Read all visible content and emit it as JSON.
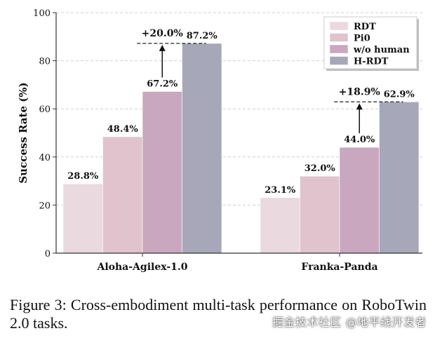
{
  "chart_data": {
    "type": "bar",
    "ylabel": "Success Rate (%)",
    "ylim": [
      0,
      100
    ],
    "yticks": [
      0,
      20,
      40,
      60,
      80,
      100
    ],
    "grid": true,
    "legend_position": "top-right",
    "categories": [
      "Aloha-Agilex-1.0",
      "Franka-Panda"
    ],
    "series": [
      {
        "name": "RDT",
        "values": [
          28.8,
          23.1
        ],
        "labels": [
          "28.8%",
          "23.1%"
        ],
        "color": "#ead9de"
      },
      {
        "name": "Pi0",
        "values": [
          48.4,
          32.0
        ],
        "labels": [
          "48.4%",
          "32.0%"
        ],
        "color": "#e0c3cc"
      },
      {
        "name": "w/o human",
        "values": [
          67.2,
          44.0
        ],
        "labels": [
          "67.2%",
          "44.0%"
        ],
        "color": "#c9a7bf"
      },
      {
        "name": "H-RDT",
        "values": [
          87.2,
          62.9
        ],
        "labels": [
          "87.2%",
          "62.9%"
        ],
        "color": "#a7a7ba"
      }
    ],
    "annotations": [
      {
        "category": "Aloha-Agilex-1.0",
        "from": 67.2,
        "to": 87.2,
        "text": "+20.0%"
      },
      {
        "category": "Franka-Panda",
        "from": 44.0,
        "to": 62.9,
        "text": "+18.9%"
      }
    ]
  },
  "caption": "Figure 3: Cross-embodiment multi-task performance on RoboTwin 2.0 tasks.",
  "watermark": "掘金技术社区 @地平线开发者"
}
